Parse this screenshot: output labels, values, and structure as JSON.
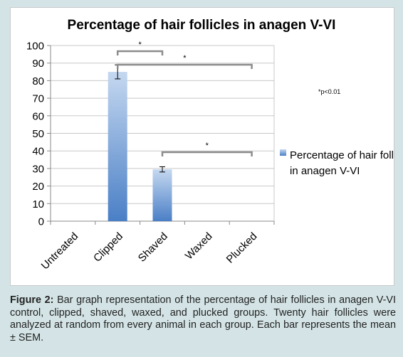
{
  "chart_data": {
    "type": "bar",
    "title": "Percentage of hair follicles in anagen V-VI",
    "categories": [
      "Untreated",
      "Clipped",
      "Shaved",
      "Waxed",
      "Plucked"
    ],
    "series": [
      {
        "name": "Percentage of hair follicles in anagen V-VI",
        "values": [
          0,
          85,
          29.5,
          0,
          0
        ],
        "error": [
          0,
          4,
          1.5,
          0,
          0
        ]
      }
    ],
    "ylim": [
      0,
      100
    ],
    "yticks": [
      "0",
      "10",
      "20",
      "30",
      "40",
      "50",
      "60",
      "70",
      "80",
      "90",
      "100"
    ],
    "grid": true,
    "legend": "right",
    "bar_color": "#5b8fd1",
    "significance": [
      {
        "from": "Clipped",
        "to": "Shaved",
        "mark": "*"
      },
      {
        "from": "Clipped",
        "to": "Plucked",
        "mark": "*"
      },
      {
        "from": "Shaved",
        "to": "Plucked",
        "mark": "*"
      }
    ],
    "annotation": "*p<0.01"
  },
  "caption": {
    "label": "Figure 2:",
    "text": " Bar graph representation of the percentage of hair follicles in anagen V-VI control, clipped, shaved, waxed, and plucked groups. Twenty hair follicles were analyzed at random from every animal in each group. Each bar represents the mean ± SEM."
  }
}
